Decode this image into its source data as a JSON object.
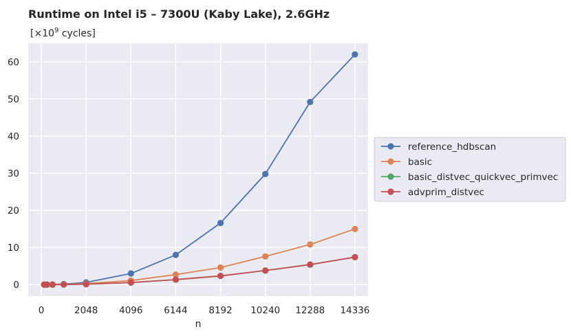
{
  "chart_data": {
    "type": "line",
    "title": "Runtime on Intel i5 – 7300U (Kaby Lake),  2.6GHz",
    "subtitle": {
      "prefix": "[×10",
      "exponent": "9",
      "suffix": " cycles]"
    },
    "xlabel": "n",
    "ylabel": "",
    "xlim": [
      -600,
      14936
    ],
    "ylim": [
      -3.1,
      65
    ],
    "xticks": [
      0,
      2048,
      4096,
      6144,
      8192,
      10240,
      12288,
      14336
    ],
    "xtick_labels": [
      "0",
      "2048",
      "4096",
      "6144",
      "8192",
      "10240",
      "12288",
      "14336"
    ],
    "yticks": [
      0,
      10,
      20,
      30,
      40,
      50,
      60
    ],
    "ytick_labels": [
      "0",
      "10",
      "20",
      "30",
      "40",
      "50",
      "60"
    ],
    "grid": true,
    "legend_position": "outside-right",
    "x": [
      128,
      256,
      512,
      1024,
      2048,
      4096,
      6144,
      8192,
      10240,
      12288,
      14336
    ],
    "series": [
      {
        "name": "reference_hdbscan",
        "color": "#4c72b0",
        "values": [
          0.0,
          0.01,
          0.04,
          0.15,
          0.6,
          3.0,
          8.0,
          16.6,
          29.8,
          49.2,
          62.0
        ]
      },
      {
        "name": "basic",
        "color": "#dd8452",
        "values": [
          0.0,
          0.0,
          0.02,
          0.06,
          0.28,
          1.1,
          2.7,
          4.6,
          7.6,
          10.8,
          15.0
        ]
      },
      {
        "name": "basic_distvec_quickvec_primvec",
        "color": "#55a868",
        "values": [
          0.0,
          0.0,
          0.01,
          0.03,
          0.12,
          0.55,
          1.35,
          2.35,
          3.8,
          5.4,
          7.4
        ]
      },
      {
        "name": "advprim_distvec",
        "color": "#c44e52",
        "values": [
          0.0,
          0.0,
          0.01,
          0.03,
          0.12,
          0.55,
          1.35,
          2.35,
          3.8,
          5.4,
          7.4
        ]
      }
    ]
  }
}
